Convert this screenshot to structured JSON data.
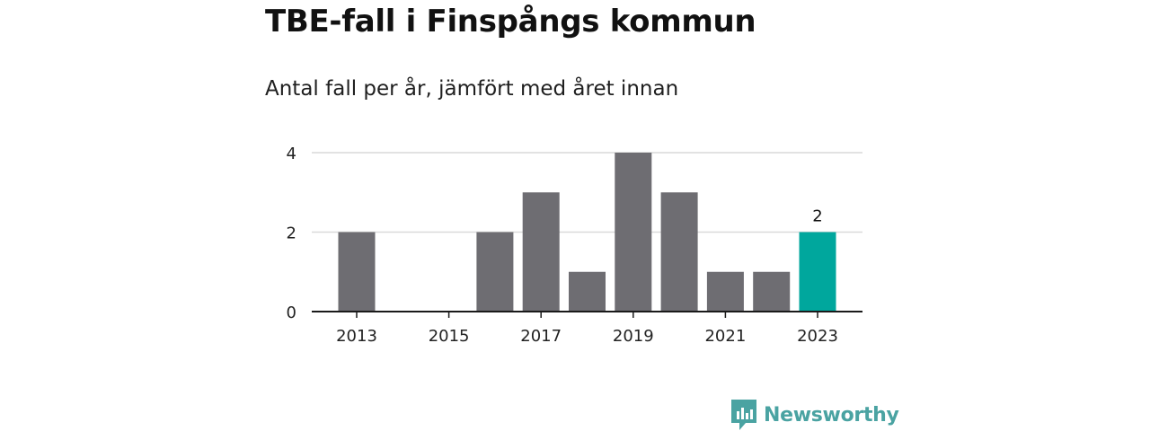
{
  "title": "TBE-fall i Finspångs kommun",
  "subtitle": "Antal fall per år, jämfört med året innan",
  "brand": "Newsworthy",
  "colors": {
    "bar": "#6e6d72",
    "highlight": "#00a79d",
    "brand": "#4aa3a2",
    "grid": "#d9d9d9",
    "axis": "#1a1a1a"
  },
  "chart_data": {
    "type": "bar",
    "categories": [
      "2013",
      "2014",
      "2015",
      "2016",
      "2017",
      "2018",
      "2019",
      "2020",
      "2021",
      "2022",
      "2023"
    ],
    "values": [
      2,
      0,
      0,
      2,
      3,
      1,
      4,
      3,
      1,
      1,
      2
    ],
    "highlight_category": "2023",
    "data_labels": [
      {
        "category": "2023",
        "text": "2"
      }
    ],
    "x_tick_labels": [
      "2013",
      "2015",
      "2017",
      "2019",
      "2021",
      "2023"
    ],
    "y_ticks": [
      0,
      2,
      4
    ],
    "ylim": [
      0,
      4
    ],
    "grid": true,
    "xlabel": "",
    "ylabel": ""
  }
}
